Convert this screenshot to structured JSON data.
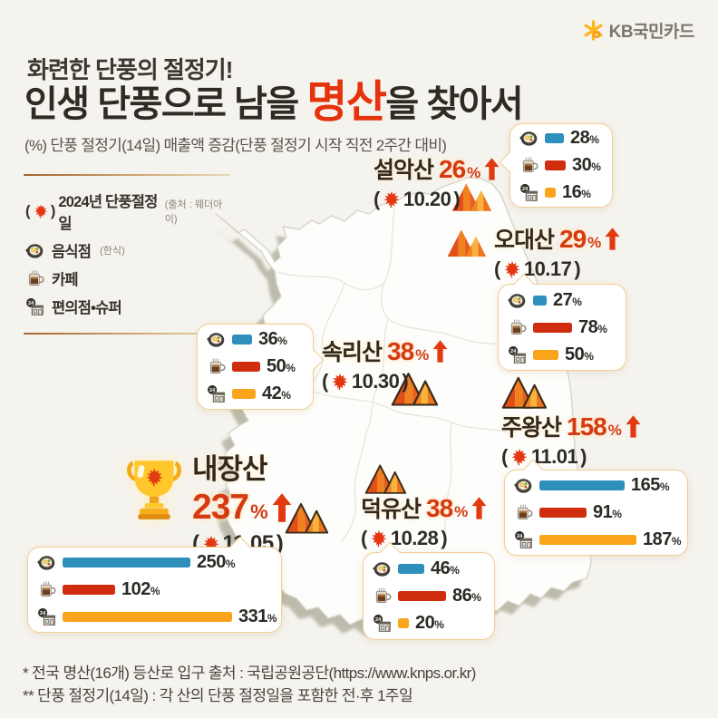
{
  "brand": {
    "name": "KB국민카드"
  },
  "header": {
    "tagline": "화련한 단풍의 절정기!",
    "title_prefix": "인생 단풍으로 남을 ",
    "title_highlight": "명산",
    "title_suffix": "을 찾아서",
    "subtitle": "(%) 단풍 절정기(14일) 매출액 증감(단풍 절정기 시작 직전 2주간 대비)"
  },
  "labels": {
    "percent": "%",
    "paren_open": "(",
    "paren_close": ")"
  },
  "legend": {
    "peak_date_label": "2024년 단풍절정일",
    "peak_date_source": "(출처 : 웨더아이)",
    "items": [
      {
        "icon": "restaurant-icon",
        "label": "음식점",
        "sublabel": "(한식)"
      },
      {
        "icon": "cafe-icon",
        "label": "카페",
        "sublabel": ""
      },
      {
        "icon": "store-icon",
        "label": "편의점•슈퍼",
        "sublabel": ""
      }
    ]
  },
  "colors": {
    "series": [
      "#2e8fbc",
      "#cf2d0e",
      "#f9a41b"
    ],
    "accent": "#e5330c"
  },
  "mountains": [
    {
      "name": "설악산",
      "pct": "26",
      "date": "10.20"
    },
    {
      "name": "오대산",
      "pct": "29",
      "date": "10.17"
    },
    {
      "name": "속리산",
      "pct": "38",
      "date": "10.30"
    },
    {
      "name": "주왕산",
      "pct": "158",
      "date": "11.01"
    },
    {
      "name": "내장산",
      "pct": "237",
      "date": "11.05"
    },
    {
      "name": "덕유산",
      "pct": "38",
      "date": "10.28"
    }
  ],
  "chart_data": [
    {
      "type": "bar",
      "mountain": "설악산",
      "categories": [
        "음식점(한식)",
        "카페",
        "편의점•슈퍼"
      ],
      "values": [
        28,
        30,
        16
      ],
      "unit": "%",
      "bar_scale": 0.75,
      "legend_position": "callout-top-right"
    },
    {
      "type": "bar",
      "mountain": "오대산",
      "categories": [
        "음식점(한식)",
        "카페",
        "편의점•슈퍼"
      ],
      "values": [
        27,
        78,
        50
      ],
      "unit": "%",
      "bar_scale": 0.55,
      "legend_position": "callout-right"
    },
    {
      "type": "bar",
      "mountain": "속리산",
      "categories": [
        "음식점(한식)",
        "카페",
        "편의점•슈퍼"
      ],
      "values": [
        36,
        50,
        42
      ],
      "unit": "%",
      "bar_scale": 0.62,
      "legend_position": "callout-left"
    },
    {
      "type": "bar",
      "mountain": "주왕산",
      "categories": [
        "음식점(한식)",
        "카페",
        "편의점•슈퍼"
      ],
      "values": [
        165,
        91,
        187
      ],
      "unit": "%",
      "bar_scale": 0.57,
      "legend_position": "callout-bottom-right"
    },
    {
      "type": "bar",
      "mountain": "내장산",
      "categories": [
        "음식점(한식)",
        "카페",
        "편의점•슈퍼"
      ],
      "values": [
        250,
        102,
        331
      ],
      "unit": "%",
      "bar_scale": 0.565,
      "legend_position": "callout-bottom-left"
    },
    {
      "type": "bar",
      "mountain": "덕유산",
      "categories": [
        "음식점(한식)",
        "카페",
        "편의점•슈퍼"
      ],
      "values": [
        46,
        86,
        20
      ],
      "unit": "%",
      "bar_scale": 0.62,
      "legend_position": "callout-bottom"
    }
  ],
  "footer": {
    "note1": "* 전국 명산(16개) 등산로 입구 출처 : 국립공원공단(https://www.knps.or.kr)",
    "note2": "** 단풍 절정기(14일) : 각 산의 단풍 절정일을 포함한 전·후 1주일"
  }
}
